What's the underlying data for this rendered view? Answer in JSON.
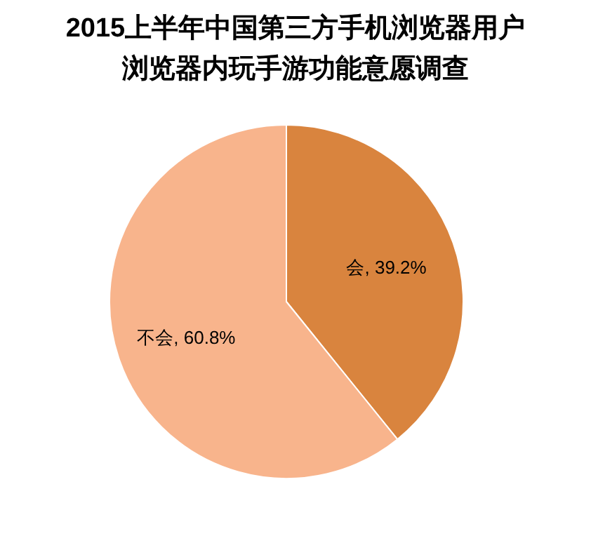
{
  "chart_data": {
    "type": "pie",
    "title": "2015上半年中国第三方手机浏览器用户",
    "subtitle": "浏览器内玩手游功能意愿调查",
    "categories": [
      "会",
      "不会"
    ],
    "values": [
      39.2,
      60.8
    ],
    "colors": [
      "#d9843e",
      "#f8b48c"
    ],
    "value_labels": [
      ", 39.2%",
      ", 60.8%"
    ]
  }
}
